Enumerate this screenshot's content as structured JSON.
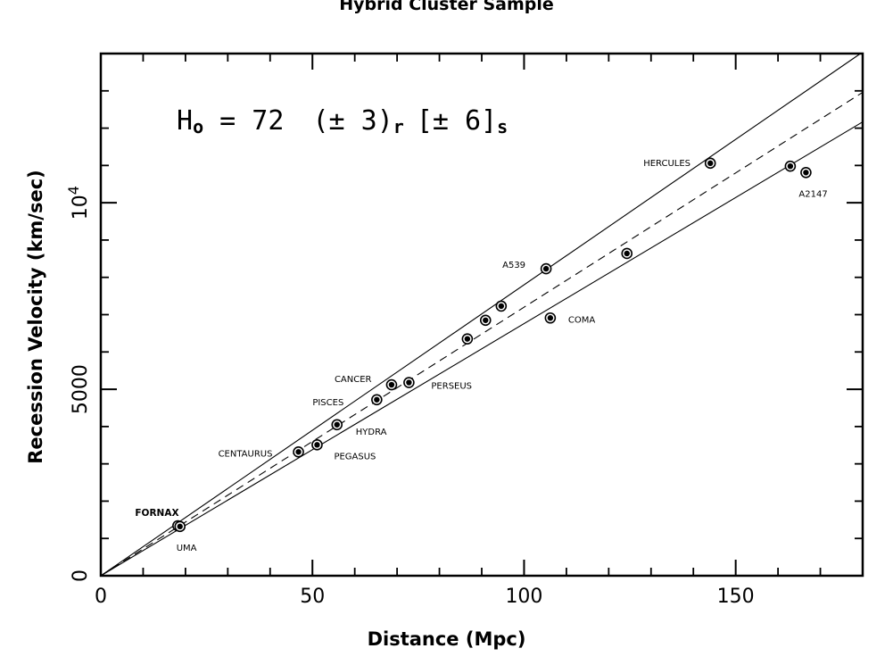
{
  "chart_data": {
    "type": "scatter",
    "title": "Hybrid Cluster Sample",
    "xlabel": "Distance (Mpc)",
    "ylabel": "Recession Velocity (km/sec)",
    "xlim": [
      0,
      180
    ],
    "ylim": [
      0,
      14000
    ],
    "x_ticks": [
      0,
      50,
      100,
      150
    ],
    "y_ticks": [
      {
        "value": 0,
        "label": "0"
      },
      {
        "value": 5000,
        "label": "5000"
      },
      {
        "value": 10000,
        "label": "10",
        "exponent": "4"
      }
    ],
    "annotation": {
      "H": "H",
      "sub_o": "o",
      "eq": " = 72 ",
      "stat": "(± 3)",
      "sub_r": "r",
      "sys": "[± 6]",
      "sub_s": "s"
    },
    "lines": [
      {
        "style": "dashed",
        "slope": 72
      },
      {
        "style": "solid",
        "slope": 78
      },
      {
        "style": "solid",
        "slope": 67.6
      }
    ],
    "points": [
      {
        "label": "FORNAX",
        "x": 18.2,
        "y": 1340
      },
      {
        "label": "UMA",
        "x": 18.7,
        "y": 1320
      },
      {
        "label": "CENTAURUS",
        "x": 46.7,
        "y": 3320
      },
      {
        "label": "PEGASUS",
        "x": 51.1,
        "y": 3510
      },
      {
        "label": "HYDRA",
        "x": 55.8,
        "y": 4050
      },
      {
        "label": "PISCES",
        "x": 65.2,
        "y": 4720
      },
      {
        "label": "CANCER",
        "x": 68.7,
        "y": 5120
      },
      {
        "label": "PERSEUS",
        "x": 72.8,
        "y": 5180
      },
      {
        "label": "",
        "x": 86.6,
        "y": 6350
      },
      {
        "label": "",
        "x": 90.9,
        "y": 6850
      },
      {
        "label": "",
        "x": 94.6,
        "y": 7230
      },
      {
        "label": "A539",
        "x": 105.2,
        "y": 8230
      },
      {
        "label": "COMA",
        "x": 106.2,
        "y": 6910
      },
      {
        "label": "",
        "x": 124.3,
        "y": 8640
      },
      {
        "label": "HERCULES",
        "x": 144.0,
        "y": 11060
      },
      {
        "label": "",
        "x": 162.9,
        "y": 10980
      },
      {
        "label": "A2147",
        "x": 166.6,
        "y": 10810
      }
    ]
  }
}
